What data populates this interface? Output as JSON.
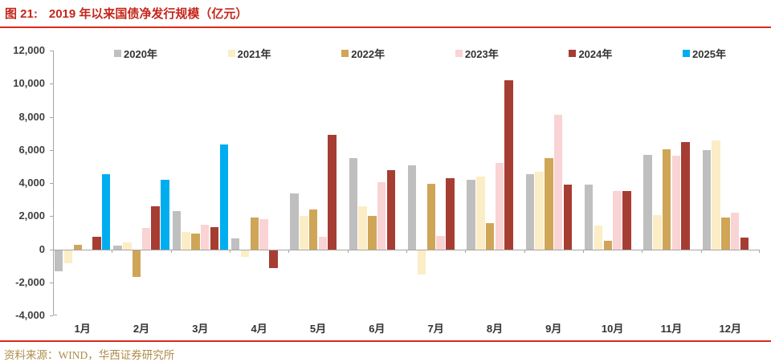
{
  "header": {
    "figure_label": "图 21:",
    "title": "2019 年以来国债净发行规模（亿元）"
  },
  "footer": {
    "source": "资料来源：WIND，华西证券研究所"
  },
  "colors": {
    "title_red": "#C5261B",
    "rule_red": "#D92A1A",
    "source_gold": "#B08C4A",
    "axis_gray": "#A6A6A6"
  },
  "chart_data": {
    "type": "bar",
    "title": "2019 年以来国债净发行规模（亿元）",
    "xlabel": "",
    "ylabel": "",
    "ylim": [
      -4000,
      12000
    ],
    "grid": false,
    "legend_position": "top",
    "categories": [
      "1月",
      "2月",
      "3月",
      "4月",
      "5月",
      "6月",
      "7月",
      "8月",
      "9月",
      "10月",
      "11月",
      "12月"
    ],
    "y_ticks": [
      {
        "label": "12,000",
        "value": 12000
      },
      {
        "label": "10,000",
        "value": 10000
      },
      {
        "label": "8,000",
        "value": 8000
      },
      {
        "label": "6,000",
        "value": 6000
      },
      {
        "label": "4,000",
        "value": 4000
      },
      {
        "label": "2,000",
        "value": 2000
      },
      {
        "label": "0",
        "value": 0
      },
      {
        "label": "-2,000",
        "value": -2000
      },
      {
        "label": "-4,000",
        "value": -4000
      }
    ],
    "series": [
      {
        "name": "2020年",
        "color": "#BFBFBF",
        "values": [
          -1300,
          200,
          2300,
          650,
          3350,
          5500,
          5050,
          4200,
          4550,
          3900,
          5700,
          6000
        ]
      },
      {
        "name": "2021年",
        "color": "#FBEDC6",
        "values": [
          -800,
          400,
          1050,
          -400,
          2000,
          2600,
          -1500,
          4400,
          4700,
          1450,
          2050,
          6550
        ]
      },
      {
        "name": "2022年",
        "color": "#CFA558",
        "values": [
          250,
          -1600,
          950,
          1900,
          2400,
          2000,
          3950,
          1600,
          5500,
          500,
          6050,
          1900
        ]
      },
      {
        "name": "2023年",
        "color": "#FAD3D4",
        "values": [
          0,
          1300,
          1500,
          1800,
          750,
          4050,
          800,
          5200,
          8100,
          3500,
          5650,
          2200
        ]
      },
      {
        "name": "2024年",
        "color": "#A63D33",
        "values": [
          750,
          2600,
          1350,
          -1100,
          6900,
          4800,
          4300,
          10200,
          3900,
          3500,
          6450,
          700
        ]
      },
      {
        "name": "2025年",
        "color": "#00AEEF",
        "values": [
          4550,
          4200,
          6350,
          null,
          null,
          null,
          null,
          null,
          null,
          null,
          null,
          null
        ]
      }
    ]
  }
}
